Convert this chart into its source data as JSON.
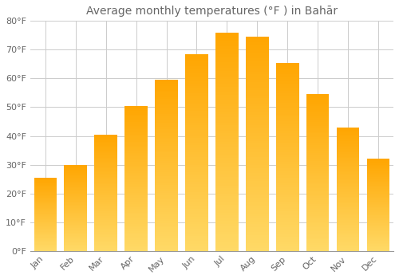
{
  "title": "Average monthly temperatures (°F ) in Bahār",
  "months": [
    "Jan",
    "Feb",
    "Mar",
    "Apr",
    "May",
    "Jun",
    "Jul",
    "Aug",
    "Sep",
    "Oct",
    "Nov",
    "Dec"
  ],
  "values": [
    25.5,
    30.0,
    40.5,
    50.5,
    59.5,
    68.5,
    76.0,
    74.5,
    65.5,
    54.5,
    43.0,
    32.0
  ],
  "bar_color": "#FFA500",
  "bar_edge_color": "#FFFFFF",
  "background_color": "#FFFFFF",
  "grid_color": "#CCCCCC",
  "ylim": [
    0,
    80
  ],
  "yticks": [
    0,
    10,
    20,
    30,
    40,
    50,
    60,
    70,
    80
  ],
  "ytick_labels": [
    "0°F",
    "10°F",
    "20°F",
    "30°F",
    "40°F",
    "50°F",
    "60°F",
    "70°F",
    "80°F"
  ],
  "title_fontsize": 10,
  "tick_fontsize": 8,
  "bar_width": 0.75,
  "font_color": "#666666",
  "bar_color_bottom": "#FFD966",
  "bar_color_top": "#FFA500"
}
